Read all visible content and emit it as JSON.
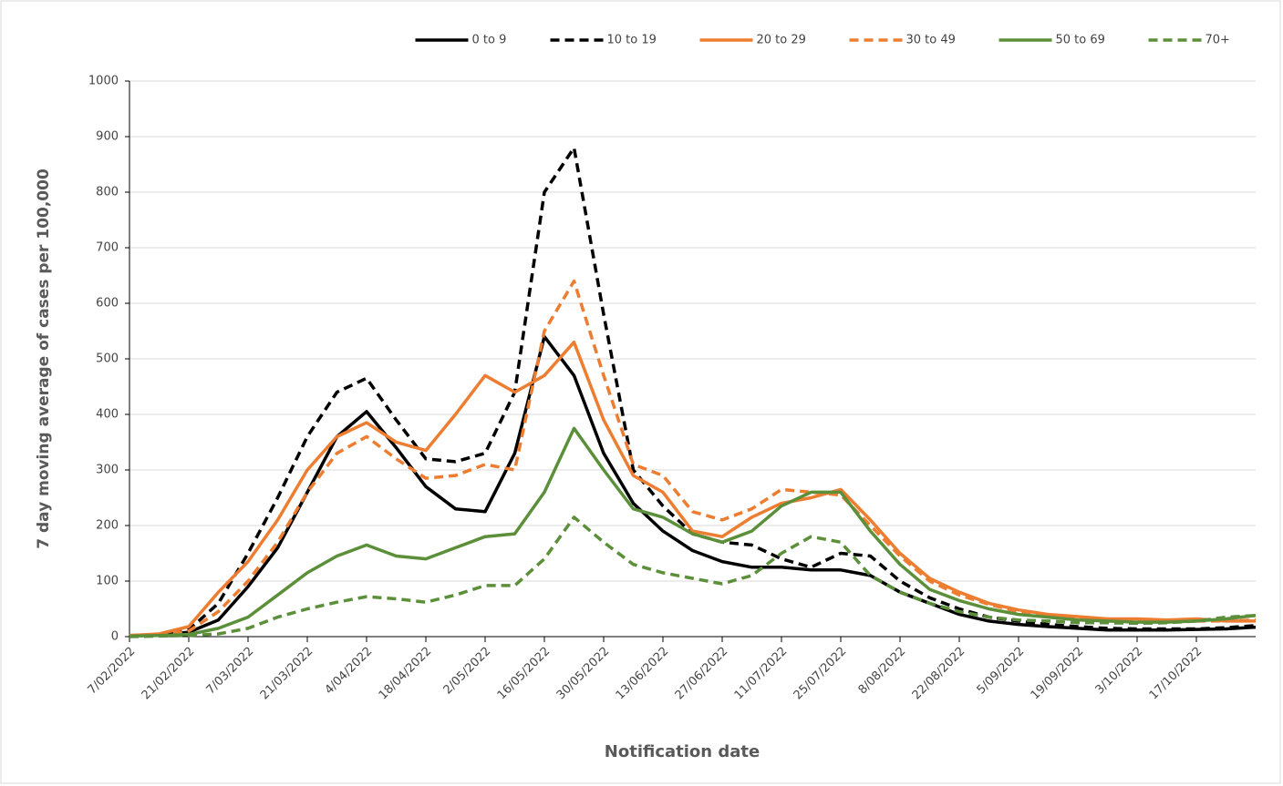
{
  "chart_data": {
    "type": "line",
    "x_label": "Notification date",
    "y_label": "7 day moving average of cases per 100,000",
    "x": [
      "7/02/2022",
      "14/02/2022",
      "21/02/2022",
      "28/02/2022",
      "7/03/2022",
      "14/03/2022",
      "21/03/2022",
      "28/03/2022",
      "4/04/2022",
      "11/04/2022",
      "18/04/2022",
      "25/04/2022",
      "2/05/2022",
      "9/05/2022",
      "16/05/2022",
      "23/05/2022",
      "30/05/2022",
      "6/06/2022",
      "13/06/2022",
      "20/06/2022",
      "27/06/2022",
      "4/07/2022",
      "11/07/2022",
      "18/07/2022",
      "25/07/2022",
      "1/08/2022",
      "8/08/2022",
      "15/08/2022",
      "22/08/2022",
      "29/08/2022",
      "5/09/2022",
      "12/09/2022",
      "19/09/2022",
      "26/09/2022",
      "3/10/2022",
      "10/10/2022",
      "17/10/2022",
      "24/10/2022",
      "31/10/2022"
    ],
    "xlim": [
      "7/02/2022",
      "31/10/2022"
    ],
    "xticks": [
      "7/02/2022",
      "21/02/2022",
      "7/03/2022",
      "21/03/2022",
      "4/04/2022",
      "18/04/2022",
      "2/05/2022",
      "16/05/2022",
      "30/05/2022",
      "13/06/2022",
      "27/06/2022",
      "11/07/2022",
      "25/07/2022",
      "8/08/2022",
      "22/08/2022",
      "5/09/2022",
      "19/09/2022",
      "3/10/2022",
      "17/10/2022"
    ],
    "ylim": [
      0,
      1000
    ],
    "yticks": [
      0,
      100,
      200,
      300,
      400,
      500,
      600,
      700,
      800,
      900,
      1000
    ],
    "grid": true,
    "legend": "top",
    "series": [
      {
        "name": "0 to 9",
        "color": "#000000",
        "dash": false,
        "values": [
          2,
          3,
          8,
          30,
          90,
          160,
          260,
          360,
          405,
          340,
          270,
          230,
          225,
          330,
          540,
          470,
          330,
          240,
          190,
          155,
          135,
          125,
          125,
          120,
          120,
          110,
          80,
          60,
          40,
          28,
          22,
          18,
          15,
          12,
          12,
          12,
          13,
          14,
          17
        ]
      },
      {
        "name": "10 to 19",
        "color": "#000000",
        "dash": true,
        "values": [
          2,
          3,
          12,
          60,
          150,
          250,
          360,
          440,
          465,
          390,
          320,
          315,
          330,
          440,
          800,
          880,
          580,
          300,
          235,
          185,
          170,
          165,
          140,
          125,
          150,
          145,
          100,
          70,
          50,
          35,
          28,
          22,
          18,
          15,
          14,
          14,
          14,
          16,
          20
        ]
      },
      {
        "name": "20 to 29",
        "color": "#ed7d31",
        "dash": false,
        "values": [
          2,
          5,
          18,
          80,
          135,
          210,
          300,
          360,
          385,
          350,
          335,
          400,
          470,
          440,
          470,
          530,
          390,
          290,
          260,
          190,
          180,
          215,
          240,
          250,
          265,
          210,
          150,
          105,
          80,
          60,
          48,
          40,
          36,
          32,
          32,
          30,
          32,
          28,
          28
        ]
      },
      {
        "name": "30 to 49",
        "color": "#ed7d31",
        "dash": true,
        "values": [
          2,
          3,
          10,
          45,
          100,
          170,
          260,
          330,
          360,
          320,
          285,
          290,
          310,
          300,
          550,
          640,
          470,
          310,
          290,
          225,
          210,
          230,
          265,
          260,
          255,
          200,
          145,
          100,
          75,
          58,
          45,
          38,
          33,
          30,
          28,
          27,
          28,
          28,
          30
        ]
      },
      {
        "name": "50 to 69",
        "color": "#5b8f3a",
        "dash": false,
        "values": [
          1,
          2,
          4,
          15,
          35,
          75,
          115,
          145,
          165,
          145,
          140,
          160,
          180,
          185,
          260,
          375,
          300,
          230,
          215,
          185,
          170,
          190,
          235,
          260,
          260,
          190,
          130,
          85,
          65,
          50,
          40,
          35,
          30,
          28,
          26,
          26,
          28,
          32,
          38
        ]
      },
      {
        "name": "70+",
        "color": "#5b8f3a",
        "dash": true,
        "values": [
          0,
          1,
          2,
          5,
          15,
          35,
          50,
          62,
          72,
          68,
          62,
          75,
          92,
          92,
          140,
          215,
          170,
          130,
          115,
          105,
          95,
          110,
          150,
          180,
          170,
          110,
          80,
          60,
          45,
          35,
          30,
          28,
          25,
          25,
          24,
          25,
          28,
          35,
          38
        ]
      }
    ]
  }
}
